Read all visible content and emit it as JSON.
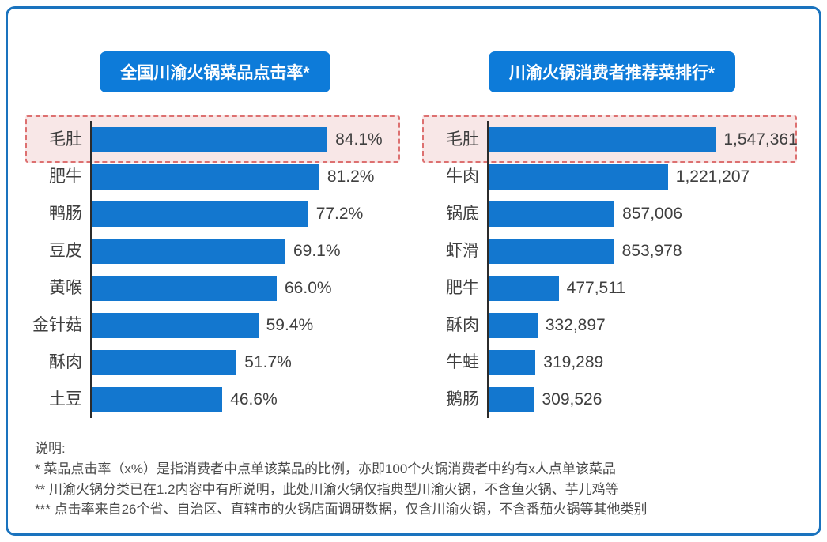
{
  "colors": {
    "page_bg": "#ffffff",
    "card_bg": "#ffffff",
    "card_border": "#1a73be",
    "pill_bg": "#0d7bd9",
    "pill_text": "#ffffff",
    "bar": "#1377cf",
    "axis": "#2b2b2b",
    "label_text": "#3f3f3f",
    "note_text": "#4a4a4a",
    "highlight_bg": "#f8e7e7",
    "highlight_border": "#dd7070"
  },
  "chart_data": [
    {
      "type": "bar",
      "orientation": "horizontal",
      "title": "全国川渝火锅菜品点击率*",
      "categories": [
        "毛肚",
        "肥牛",
        "鸭肠",
        "豆皮",
        "黄喉",
        "金针菇",
        "酥肉",
        "土豆"
      ],
      "values": [
        84.1,
        81.2,
        77.2,
        69.1,
        66.0,
        59.4,
        51.7,
        46.6
      ],
      "value_labels": [
        "84.1%",
        "81.2%",
        "77.2%",
        "69.1%",
        "66.0%",
        "59.4%",
        "51.7%",
        "46.6%"
      ],
      "unit": "percent",
      "xlim": [
        0,
        110
      ],
      "grid": false,
      "legend": "none",
      "highlighted_category": "毛肚"
    },
    {
      "type": "bar",
      "orientation": "horizontal",
      "title": "川渝火锅消费者推荐菜排行*",
      "categories": [
        "毛肚",
        "牛肉",
        "锅底",
        "虾滑",
        "肥牛",
        "酥肉",
        "牛蛙",
        "鹅肠"
      ],
      "values": [
        1547361,
        1221207,
        857006,
        853978,
        477511,
        332897,
        319289,
        309526
      ],
      "value_labels": [
        "1,547,361",
        "1,221,207",
        "857,006",
        "853,978",
        "477,511",
        "332,897",
        "319,289",
        "309,526"
      ],
      "unit": "count",
      "xlim": [
        0,
        2100000
      ],
      "grid": false,
      "legend": "none",
      "highlighted_category": "毛肚"
    }
  ],
  "notes": {
    "heading": "说明:",
    "lines": [
      "* 菜品点击率（x%）是指消费者中点单该菜品的比例，亦即100个火锅消费者中约有x人点单该菜品",
      "** 川渝火锅分类已在1.2内容中有所说明，此处川渝火锅仅指典型川渝火锅，不含鱼火锅、芋儿鸡等",
      "*** 点击率来自26个省、自治区、直辖市的火锅店面调研数据，仅含川渝火锅，不含番茄火锅等其他类别"
    ]
  }
}
